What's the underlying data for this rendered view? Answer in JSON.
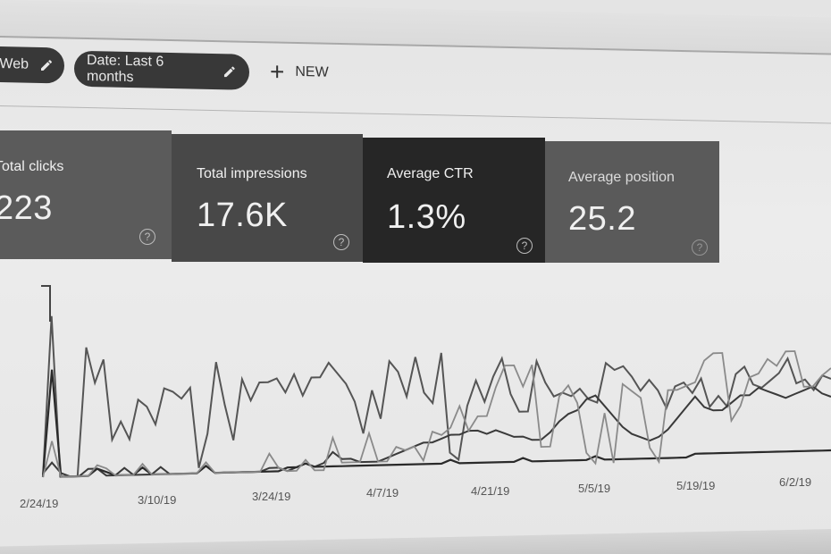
{
  "filters": {
    "chips": [
      {
        "label": "Web",
        "icon": "pencil-icon"
      },
      {
        "label": "Date: Last 6 months",
        "icon": "pencil-icon"
      }
    ],
    "new_button": {
      "icon": "plus-icon",
      "label": "NEW"
    }
  },
  "metrics": [
    {
      "label": "Total clicks",
      "value": "223",
      "help_icon": "question-circle-icon",
      "color": "#5b5b5b"
    },
    {
      "label": "Total impressions",
      "value": "17.6K",
      "help_icon": "question-circle-icon",
      "color": "#484848"
    },
    {
      "label": "Average CTR",
      "value": "1.3%",
      "help_icon": "question-circle-icon",
      "color": "#262626"
    },
    {
      "label": "Average position",
      "value": "25.2",
      "help_icon": "question-circle-icon",
      "color": "#5a5a5a"
    }
  ],
  "chart_data": {
    "type": "line",
    "title": "",
    "xlabel": "",
    "ylabel": "",
    "grid": false,
    "legend": "none",
    "x_tick_labels": [
      "2/24/19",
      "3/10/19",
      "3/24/19",
      "4/7/19",
      "4/21/19",
      "5/5/19",
      "5/19/19",
      "6/2/19"
    ],
    "series": [
      {
        "name": "Total clicks",
        "values": [
          0,
          90,
          0,
          0,
          0,
          72,
          52,
          65,
          20,
          30,
          20,
          42,
          38,
          28,
          48,
          46,
          42,
          48,
          3,
          22,
          62,
          38,
          18,
          52,
          40,
          50,
          50,
          52,
          44,
          54,
          42,
          52,
          52,
          60,
          54,
          48,
          38,
          20,
          44,
          28,
          60,
          54,
          40,
          62,
          42,
          36,
          64,
          8,
          4,
          34,
          48,
          36,
          50,
          60,
          40,
          30,
          30,
          58,
          46,
          38,
          40,
          38,
          42,
          36,
          34,
          56,
          52,
          54,
          48,
          40,
          46,
          40,
          30,
          42,
          44,
          38,
          46,
          30,
          36,
          30,
          48,
          52,
          42,
          40,
          44,
          48,
          56,
          42,
          44,
          38,
          46,
          44
        ]
      },
      {
        "name": "Total impressions",
        "values": [
          2,
          8,
          2,
          0,
          0,
          4,
          4,
          0,
          0,
          4,
          0,
          0,
          0,
          4,
          0,
          0,
          0,
          0,
          4,
          0,
          0,
          0,
          0,
          0,
          0,
          2,
          2,
          0,
          2,
          4,
          2,
          4,
          10,
          6,
          6,
          4,
          4,
          4,
          6,
          8,
          10,
          12,
          14,
          14,
          16,
          18,
          18,
          20,
          20,
          18,
          20,
          18,
          16,
          16,
          14,
          14,
          18,
          24,
          28,
          30,
          36,
          38,
          32,
          26,
          20,
          16,
          14,
          12,
          14,
          18,
          24,
          30,
          36,
          30,
          28,
          28,
          32,
          36,
          36,
          40,
          38,
          36,
          34,
          36,
          38,
          40,
          36,
          34
        ]
      },
      {
        "name": "Average CTR",
        "values": [
          0,
          60,
          0,
          0,
          0,
          0,
          4,
          2,
          0,
          0,
          0,
          4,
          0,
          0,
          0,
          0,
          0,
          0,
          4,
          0,
          0,
          0,
          0,
          0,
          0,
          0,
          0,
          2,
          2,
          4,
          2,
          2,
          2,
          2,
          2,
          2,
          2,
          2,
          2,
          2,
          2,
          2,
          2,
          2,
          2,
          4,
          2,
          2,
          2,
          2,
          2,
          2,
          2,
          4,
          2,
          2,
          2,
          2,
          2,
          2,
          2,
          4,
          2,
          2,
          2,
          2,
          2,
          2,
          2,
          2,
          2,
          2,
          4,
          4,
          4,
          4,
          4,
          4,
          4,
          4,
          4,
          4,
          4,
          4,
          4,
          4,
          4,
          4
        ]
      },
      {
        "name": "Average position",
        "values": [
          0,
          20,
          0,
          0,
          0,
          0,
          6,
          4,
          0,
          0,
          0,
          6,
          0,
          0,
          0,
          0,
          0,
          0,
          6,
          0,
          0,
          0,
          0,
          0,
          0,
          10,
          2,
          0,
          0,
          6,
          0,
          0,
          18,
          4,
          4,
          4,
          20,
          4,
          4,
          12,
          10,
          12,
          4,
          20,
          18,
          22,
          34,
          20,
          28,
          28,
          44,
          56,
          56,
          44,
          56,
          10,
          10,
          38,
          44,
          34,
          6,
          0,
          28,
          0,
          44,
          40,
          36,
          8,
          0,
          40,
          40,
          42,
          44,
          56,
          60,
          60,
          22,
          30,
          46,
          48,
          56,
          52,
          60,
          60,
          40,
          40,
          46,
          50
        ]
      }
    ]
  }
}
